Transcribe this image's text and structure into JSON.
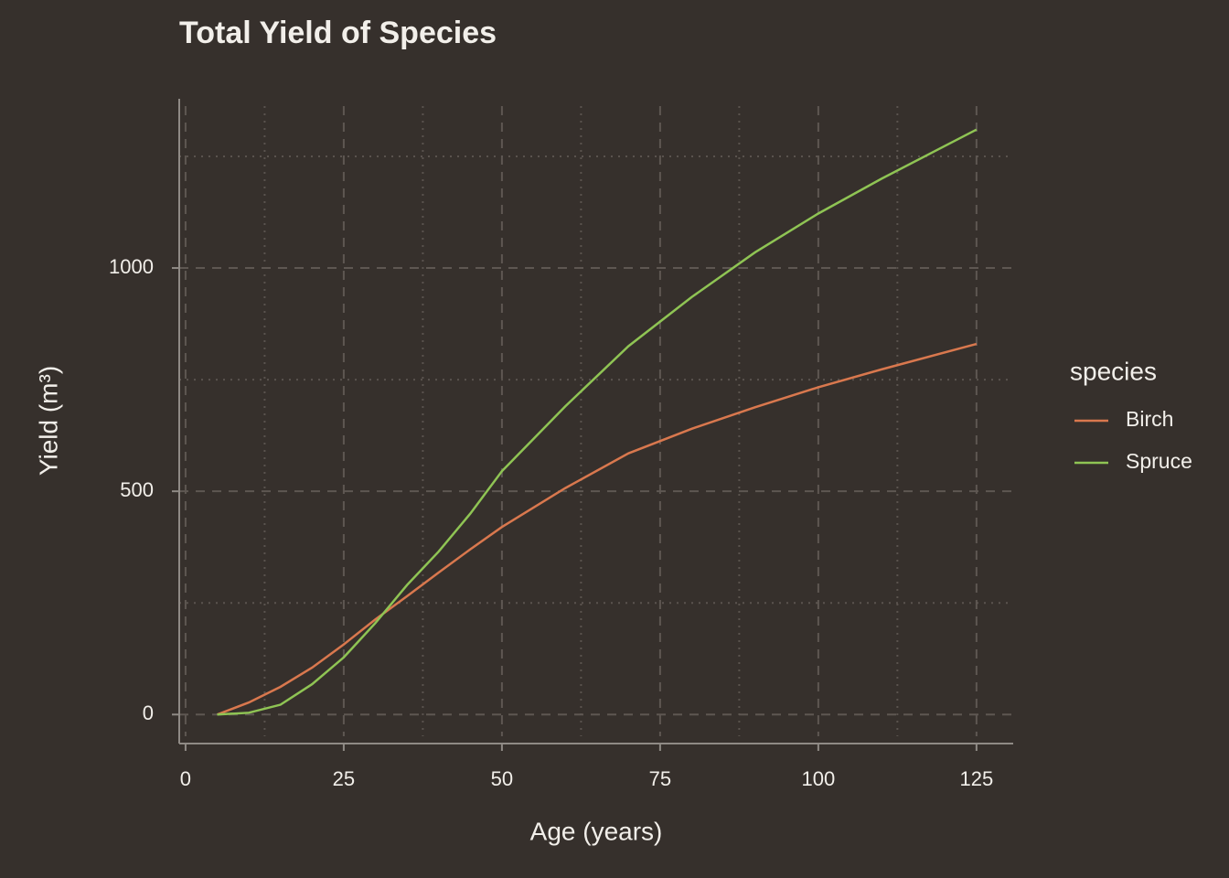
{
  "chart_data": {
    "type": "line",
    "title": "Total Yield of Species",
    "x_label": "Age (years)",
    "y_label": "Yield (m³)",
    "legend_title": "species",
    "legend_position": "right",
    "grid": true,
    "xlim": [
      -1,
      130.8
    ],
    "ylim": [
      -65,
      1379
    ],
    "xticks": [
      0,
      25,
      50,
      75,
      100,
      125
    ],
    "yticks": [
      0,
      500,
      1000
    ],
    "x_minor_ticks": [
      12.5,
      37.5,
      62.5,
      87.5,
      112.5
    ],
    "y_minor_ticks": [
      250,
      750,
      1250
    ],
    "x": [
      5,
      10,
      15,
      20,
      25,
      30,
      35,
      40,
      45,
      50,
      60,
      70,
      80,
      90,
      100,
      110,
      125
    ],
    "series": [
      {
        "name": "Birch",
        "color": "#d9784e",
        "values": [
          0,
          27,
          62,
          105,
          157,
          213,
          265,
          318,
          370,
          420,
          507,
          585,
          640,
          688,
          733,
          773,
          830
        ]
      },
      {
        "name": "Spruce",
        "color": "#8fc454",
        "values": [
          0,
          4,
          22,
          68,
          128,
          205,
          290,
          365,
          450,
          545,
          690,
          825,
          935,
          1035,
          1122,
          1200,
          1310
        ]
      }
    ]
  }
}
